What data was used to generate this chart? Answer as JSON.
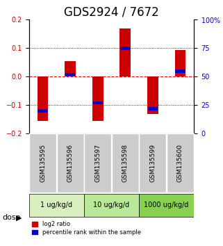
{
  "title": "GDS2924 / 7672",
  "samples": [
    "GSM135595",
    "GSM135596",
    "GSM135597",
    "GSM135598",
    "GSM135599",
    "GSM135600"
  ],
  "log2_ratio": [
    -0.155,
    0.055,
    -0.155,
    0.17,
    -0.13,
    0.093
  ],
  "percentile_rank": [
    20,
    52,
    27,
    75,
    22,
    55
  ],
  "dose_groups": [
    {
      "label": "1 ug/kg/d",
      "samples": [
        0,
        1
      ],
      "color": "#d8f0c0"
    },
    {
      "label": "10 ug/kg/d",
      "samples": [
        2,
        3
      ],
      "color": "#b8e898"
    },
    {
      "label": "1000 ug/kg/d",
      "samples": [
        4,
        5
      ],
      "color": "#88d050"
    }
  ],
  "ylim": [
    -0.2,
    0.2
  ],
  "yticks_left": [
    -0.2,
    -0.1,
    0,
    0.1,
    0.2
  ],
  "yticks_right": [
    0,
    25,
    50,
    75,
    100
  ],
  "bar_width": 0.4,
  "red_color": "#cc0000",
  "blue_color": "#0000cc",
  "grid_color": "#000000",
  "zero_line_color": "#ff0000",
  "sample_bg_color": "#cccccc",
  "title_fontsize": 12,
  "tick_fontsize": 7,
  "label_fontsize": 7.5,
  "dose_fontsize": 8
}
